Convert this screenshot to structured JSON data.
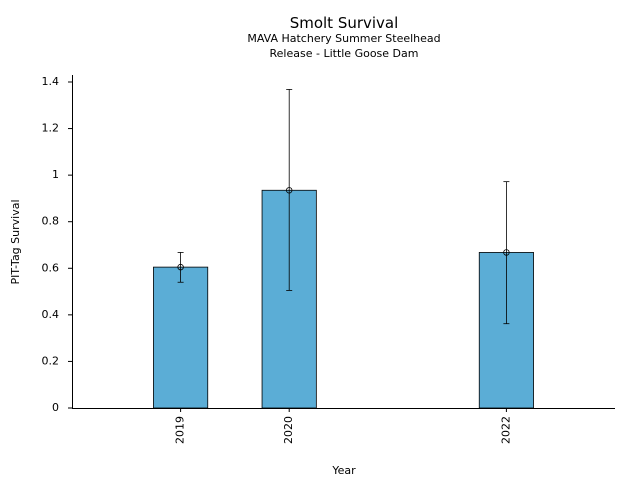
{
  "chart_data": {
    "type": "bar",
    "title": "Smolt Survival",
    "subtitle_lines": [
      "MAVA Hatchery Summer Steelhead",
      "Release - Little Goose Dam"
    ],
    "xlabel": "Year",
    "ylabel": "PIT-Tag Survival",
    "x": [
      2019,
      2020,
      2022
    ],
    "x_tick_labels": [
      "2019",
      "2020",
      "2022"
    ],
    "values": [
      0.605,
      0.935,
      0.668
    ],
    "error_low": [
      0.54,
      0.505,
      0.362
    ],
    "error_high": [
      0.668,
      1.368,
      0.972
    ],
    "xlim": [
      2018.0,
      2023.0
    ],
    "ylim": [
      0,
      1.43
    ],
    "y_ticks": [
      0,
      0.2,
      0.4,
      0.6,
      0.8,
      1,
      1.2,
      1.4
    ],
    "y_tick_labels": [
      "0",
      "0.2",
      "0.4",
      "0.6",
      "0.8",
      "1",
      "1.2",
      "1.4"
    ],
    "bar_width_years": 0.5,
    "grid": false,
    "colors": {
      "bar_fill": "#5badd6",
      "bar_edge": "#000000",
      "error_bar": "#000000"
    }
  }
}
